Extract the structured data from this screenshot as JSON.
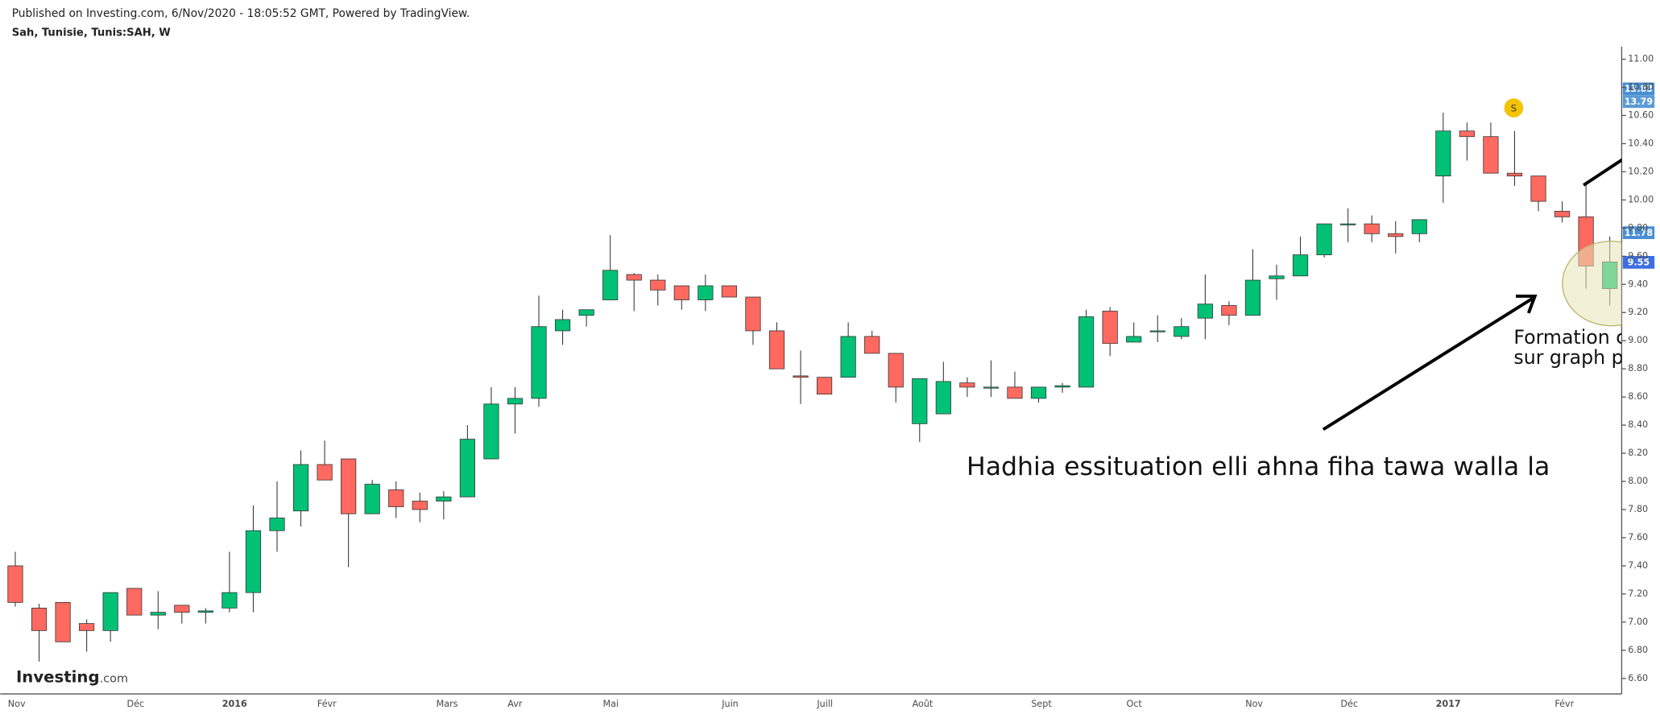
{
  "chart_data": {
    "type": "candlestick",
    "header": "Published on Investing.com, 6/Nov/2020 - 18:05:52 GMT, Powered by TradingView.",
    "title": "Sah, Tunisie, Tunis:SAH, W",
    "logo": "Investing",
    "logo_suffix": ".com",
    "dividend_marker": "S",
    "annotations": [
      "Hadhia essituation elli ahna fiha tawa walla la",
      "Formation c",
      "sur graph p"
    ],
    "price_tags": [
      "13.83",
      "13.79",
      "11.78",
      "9.55"
    ],
    "categories": [
      "Nov",
      null,
      null,
      null,
      null,
      "Déc",
      null,
      null,
      null,
      "2016",
      null,
      null,
      null,
      "Févr",
      null,
      null,
      null,
      null,
      "Mars",
      null,
      null,
      "Avr",
      null,
      null,
      null,
      "Mai",
      null,
      null,
      null,
      null,
      "Juin",
      null,
      null,
      null,
      "Juill",
      null,
      null,
      null,
      "Août",
      null,
      null,
      null,
      null,
      "Sept",
      null,
      null,
      null,
      "Oct",
      null,
      null,
      null,
      null,
      "Nov",
      null,
      null,
      null,
      "Déc",
      null,
      null,
      null,
      "2017",
      null,
      null,
      null,
      null,
      "Févr",
      null,
      null
    ],
    "open": [
      7.4,
      7.1,
      7.14,
      6.99,
      6.94,
      7.24,
      7.05,
      7.12,
      7.07,
      7.1,
      7.21,
      7.65,
      7.79,
      8.12,
      8.16,
      7.77,
      7.94,
      7.86,
      7.86,
      7.89,
      8.16,
      8.55,
      8.59,
      9.07,
      9.18,
      9.29,
      9.47,
      9.43,
      9.39,
      9.29,
      9.39,
      9.31,
      9.07,
      8.75,
      8.74,
      8.74,
      9.03,
      8.91,
      8.41,
      8.48,
      8.7,
      8.67,
      8.67,
      8.59,
      8.67,
      8.67,
      9.21,
      8.99,
      9.07,
      9.03,
      9.16,
      9.25,
      9.18,
      9.44,
      9.46,
      9.61,
      9.83,
      9.83,
      9.76,
      9.76,
      10.17,
      10.49,
      10.45,
      10.19,
      10.17,
      9.92,
      9.88,
      9.37
    ],
    "high": [
      7.5,
      7.13,
      7.14,
      7.02,
      7.21,
      7.24,
      7.22,
      7.12,
      7.1,
      7.5,
      7.83,
      8.0,
      8.22,
      8.29,
      8.16,
      8.01,
      8.0,
      7.92,
      7.93,
      8.4,
      8.67,
      8.67,
      9.32,
      9.22,
      9.22,
      9.75,
      9.48,
      9.47,
      9.39,
      9.47,
      9.39,
      9.31,
      9.13,
      8.93,
      8.74,
      9.13,
      9.07,
      8.91,
      8.73,
      8.85,
      8.74,
      8.86,
      8.78,
      8.67,
      8.7,
      9.22,
      9.24,
      9.13,
      9.18,
      9.16,
      9.47,
      9.28,
      9.65,
      9.54,
      9.74,
      9.83,
      9.94,
      9.89,
      9.85,
      9.86,
      10.62,
      10.55,
      10.55,
      10.49,
      10.17,
      9.99,
      10.13,
      9.74
    ],
    "low": [
      7.11,
      6.72,
      6.86,
      6.79,
      6.86,
      7.05,
      6.95,
      6.99,
      6.99,
      7.07,
      7.07,
      7.5,
      7.68,
      8.01,
      7.39,
      7.77,
      7.74,
      7.71,
      7.73,
      7.89,
      8.16,
      8.34,
      8.53,
      8.97,
      9.1,
      9.29,
      9.21,
      9.25,
      9.22,
      9.21,
      9.31,
      8.97,
      8.8,
      8.55,
      8.62,
      8.74,
      8.91,
      8.56,
      8.28,
      8.48,
      8.6,
      8.6,
      8.59,
      8.56,
      8.63,
      8.67,
      8.89,
      8.99,
      8.99,
      9.01,
      9.01,
      9.11,
      9.18,
      9.29,
      9.46,
      9.59,
      9.7,
      9.7,
      9.62,
      9.7,
      9.98,
      10.28,
      10.19,
      10.1,
      9.92,
      9.84,
      9.37,
      9.25
    ],
    "close": [
      7.14,
      6.94,
      6.86,
      6.94,
      7.21,
      7.05,
      7.07,
      7.07,
      7.08,
      7.21,
      7.65,
      7.74,
      8.12,
      8.01,
      7.77,
      7.98,
      7.82,
      7.8,
      7.89,
      8.3,
      8.55,
      8.59,
      9.1,
      9.15,
      9.22,
      9.5,
      9.43,
      9.36,
      9.29,
      9.39,
      9.31,
      9.07,
      8.8,
      8.74,
      8.62,
      9.03,
      8.91,
      8.67,
      8.73,
      8.71,
      8.67,
      8.67,
      8.59,
      8.67,
      8.68,
      9.17,
      8.98,
      9.03,
      9.07,
      9.1,
      9.26,
      9.18,
      9.43,
      9.46,
      9.61,
      9.83,
      9.83,
      9.76,
      9.74,
      9.86,
      10.49,
      10.45,
      10.19,
      10.17,
      9.99,
      9.88,
      9.53,
      9.56
    ],
    "up_color": "#00c176",
    "down_color": "#ff6960",
    "ylim": [
      6.49,
      11.09
    ],
    "yticks": [
      {
        "value": 6.6,
        "label": "6.60"
      },
      {
        "value": 6.8,
        "label": "6.80"
      },
      {
        "value": 7.0,
        "label": "7.00"
      },
      {
        "value": 7.2,
        "label": "7.20"
      },
      {
        "value": 7.4,
        "label": "7.40"
      },
      {
        "value": 7.6,
        "label": "7.60"
      },
      {
        "value": 7.8,
        "label": "7.80"
      },
      {
        "value": 8.0,
        "label": "8.00"
      },
      {
        "value": 8.2,
        "label": "8.20"
      },
      {
        "value": 8.4,
        "label": "8.40"
      },
      {
        "value": 8.6,
        "label": "8.60"
      },
      {
        "value": 8.8,
        "label": "8.80"
      },
      {
        "value": 9.0,
        "label": "9.00"
      },
      {
        "value": 9.2,
        "label": "9.20"
      },
      {
        "value": 9.4,
        "label": "9.40"
      },
      {
        "value": 9.6,
        "label": "9.60"
      },
      {
        "value": 9.8,
        "label": "9.80"
      },
      {
        "value": 10.0,
        "label": "10.00"
      },
      {
        "value": 10.2,
        "label": "10.20"
      },
      {
        "value": 10.4,
        "label": "10.40"
      },
      {
        "value": 10.6,
        "label": "10.60"
      },
      {
        "value": 10.8,
        "label": "10.80"
      },
      {
        "value": 11.0,
        "label": "11.00"
      }
    ],
    "grid": false
  }
}
